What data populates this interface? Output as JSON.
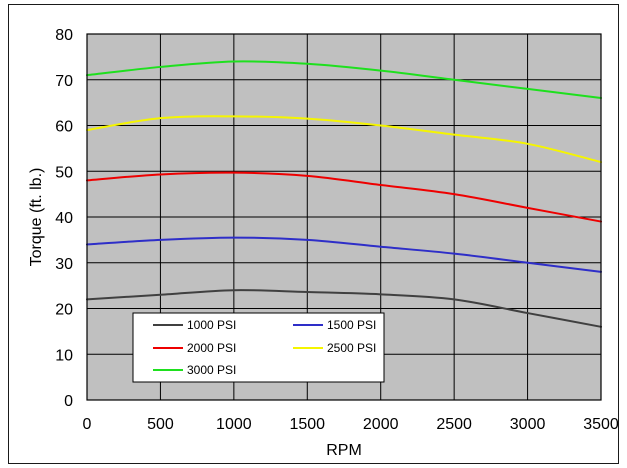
{
  "chart_data": {
    "type": "line",
    "title": "",
    "xlabel": "RPM",
    "ylabel": "Torque (ft. lb.)",
    "xlim": [
      0,
      3500
    ],
    "ylim": [
      0,
      80
    ],
    "xticks": [
      0,
      500,
      1000,
      1500,
      2000,
      2500,
      3000,
      3500
    ],
    "yticks": [
      0,
      10,
      20,
      30,
      40,
      50,
      60,
      70,
      80
    ],
    "xtick_labels": [
      "0",
      "500",
      "1000",
      "1500",
      "2000",
      "2500",
      "3000",
      "3500"
    ],
    "ytick_labels": [
      "0",
      "10",
      "20",
      "30",
      "40",
      "50",
      "60",
      "70",
      "80"
    ],
    "grid": true,
    "plot_background": "#C0C0C0",
    "legend_position": "lower-left",
    "series": [
      {
        "name": "1000 PSI",
        "color": "#404040",
        "x": [
          0,
          500,
          1000,
          1500,
          2000,
          2500,
          3000,
          3500
        ],
        "y": [
          22,
          23,
          24,
          23.6,
          23.1,
          22,
          19,
          16
        ]
      },
      {
        "name": "1500 PSI",
        "color": "#2E2EC8",
        "x": [
          0,
          500,
          1000,
          1500,
          2000,
          2500,
          3000,
          3500
        ],
        "y": [
          34,
          35,
          35.5,
          35,
          33.5,
          32,
          30,
          28
        ]
      },
      {
        "name": "2000 PSI",
        "color": "#EE0000",
        "x": [
          0,
          500,
          1000,
          1500,
          2000,
          2500,
          3000,
          3500
        ],
        "y": [
          48,
          49.3,
          49.7,
          49,
          47,
          45,
          42,
          39
        ]
      },
      {
        "name": "2500 PSI",
        "color": "#F5F500",
        "x": [
          0,
          500,
          1000,
          1500,
          2000,
          2500,
          3000,
          3500
        ],
        "y": [
          59,
          61.6,
          62,
          61.5,
          60,
          58,
          56,
          52
        ]
      },
      {
        "name": "3000 PSI",
        "color": "#1EE01E",
        "x": [
          0,
          500,
          1000,
          1500,
          2000,
          2500,
          3000,
          3500
        ],
        "y": [
          71,
          72.8,
          74,
          73.5,
          72,
          70,
          68,
          66
        ]
      }
    ]
  }
}
